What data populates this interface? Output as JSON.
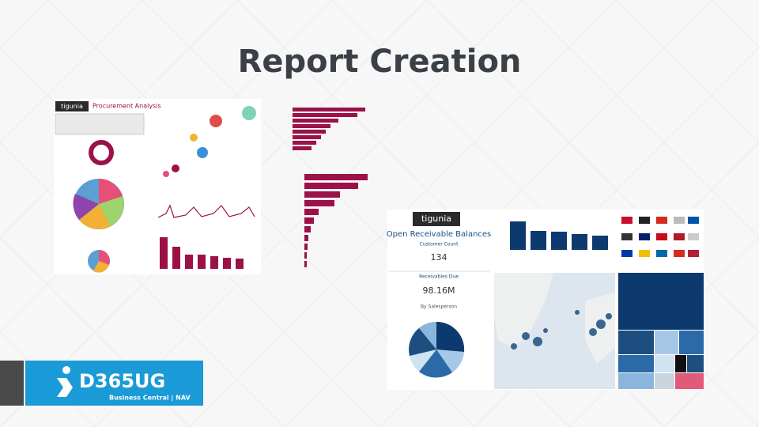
{
  "slide": {
    "title": "Report Creation"
  },
  "left_dashboard": {
    "brand": "tigunia",
    "title": "Procurement Analysis"
  },
  "right_dashboard": {
    "brand": "tigunia",
    "title": "Open Receivable Balances",
    "customer_count_label": "Customer Count",
    "customer_count": "134",
    "receivables_label": "Receivables Due",
    "receivables": "98.16M",
    "pie_label": "By Salesperson"
  },
  "logo": {
    "name": "D365UG",
    "tagline": "Business Central | NAV"
  }
}
